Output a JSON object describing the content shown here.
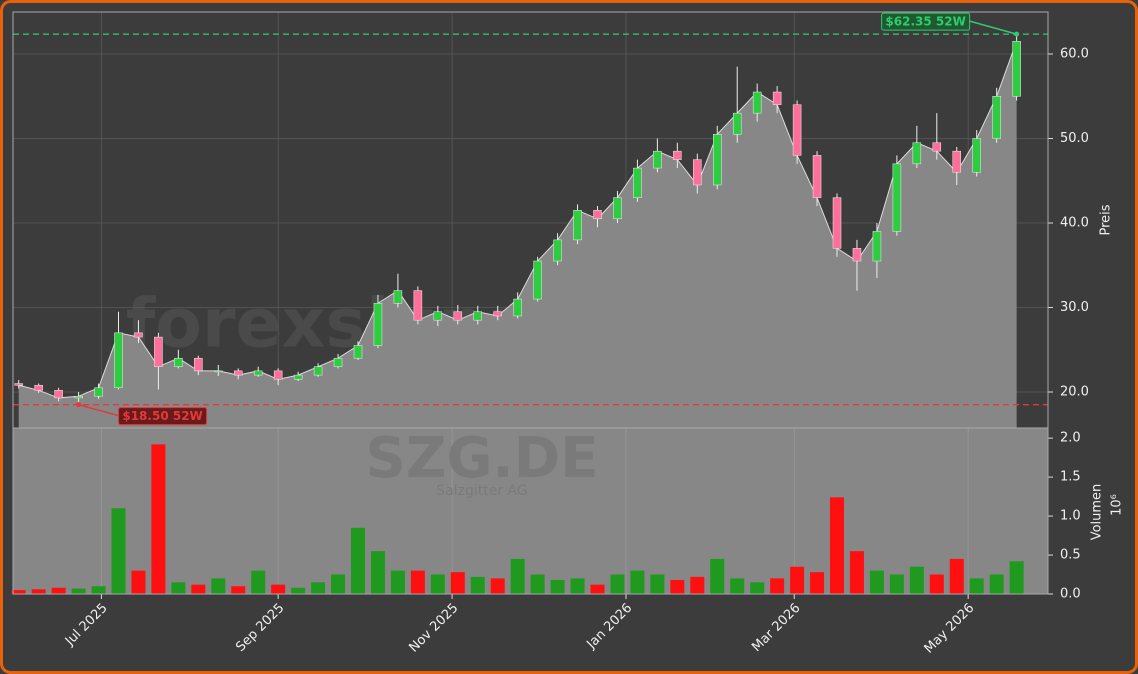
{
  "chart_data": {
    "type": "candlestick",
    "watermark": "forexsignale.trade",
    "ticker": "SZG.DE",
    "company": "Salzgitter AG",
    "y_label": "Preis",
    "up_color": "#2ecc40",
    "down_color": "#ff6f9c",
    "area_color": "#878787",
    "x": [
      "2025-06-02",
      "2025-06-09",
      "2025-06-16",
      "2025-06-23",
      "2025-06-30",
      "2025-07-07",
      "2025-07-14",
      "2025-07-21",
      "2025-07-28",
      "2025-08-04",
      "2025-08-11",
      "2025-08-18",
      "2025-08-25",
      "2025-09-01",
      "2025-09-08",
      "2025-09-15",
      "2025-09-22",
      "2025-09-29",
      "2025-10-06",
      "2025-10-13",
      "2025-10-20",
      "2025-10-27",
      "2025-11-03",
      "2025-11-10",
      "2025-11-17",
      "2025-11-24",
      "2025-12-01",
      "2025-12-08",
      "2025-12-15",
      "2025-12-22",
      "2025-12-29",
      "2026-01-05",
      "2026-01-12",
      "2026-01-19",
      "2026-01-26",
      "2026-02-02",
      "2026-02-09",
      "2026-02-16",
      "2026-02-23",
      "2026-03-02",
      "2026-03-09",
      "2026-03-16",
      "2026-03-23",
      "2026-03-30",
      "2026-04-06",
      "2026-04-13",
      "2026-04-20",
      "2026-04-27",
      "2026-05-04",
      "2026-05-11",
      "2026-05-18"
    ],
    "open": [
      21.0,
      20.8,
      20.2,
      19.3,
      19.5,
      20.5,
      27.0,
      26.5,
      23.0,
      24.0,
      22.5,
      22.5,
      22.0,
      22.5,
      21.5,
      22.0,
      23.0,
      24.0,
      25.5,
      30.5,
      32.0,
      28.5,
      29.5,
      28.5,
      29.5,
      29.0,
      31.0,
      35.5,
      38.0,
      41.5,
      40.5,
      43.0,
      46.5,
      48.5,
      47.5,
      44.5,
      50.5,
      53.0,
      55.5,
      54.0,
      48.0,
      43.0,
      37.0,
      35.5,
      39.0,
      47.0,
      49.5,
      48.5,
      46.0,
      50.0,
      55.0
    ],
    "high": [
      21.4,
      21.0,
      20.5,
      20.0,
      21.0,
      29.5,
      28.5,
      27.0,
      25.0,
      24.3,
      23.2,
      22.8,
      23.0,
      22.8,
      22.4,
      23.4,
      24.5,
      26.0,
      31.5,
      34.0,
      32.5,
      30.2,
      30.3,
      30.2,
      30.2,
      31.8,
      36.0,
      38.8,
      42.2,
      42.0,
      43.8,
      47.5,
      50.0,
      49.5,
      48.2,
      51.5,
      58.5,
      56.5,
      56.2,
      54.5,
      48.5,
      43.5,
      38.0,
      40.0,
      48.0,
      51.5,
      53.0,
      49.0,
      51.0,
      56.0,
      62.35
    ],
    "low": [
      20.4,
      19.9,
      18.9,
      18.5,
      19.2,
      20.3,
      25.8,
      20.3,
      22.8,
      22.0,
      21.9,
      21.5,
      21.8,
      20.8,
      21.3,
      21.8,
      22.8,
      23.8,
      25.2,
      30.0,
      28.0,
      27.8,
      28.0,
      28.0,
      28.5,
      28.7,
      30.7,
      35.0,
      37.5,
      39.5,
      40.0,
      42.5,
      46.0,
      46.5,
      43.5,
      44.0,
      49.5,
      52.0,
      53.0,
      47.0,
      42.0,
      36.0,
      32.0,
      33.5,
      38.5,
      46.5,
      47.5,
      44.5,
      45.5,
      49.5,
      54.5
    ],
    "close": [
      20.8,
      20.2,
      19.3,
      19.5,
      20.5,
      27.0,
      26.5,
      23.0,
      24.0,
      22.5,
      22.5,
      22.0,
      22.5,
      21.5,
      22.0,
      23.0,
      24.0,
      25.5,
      30.5,
      32.0,
      28.5,
      29.5,
      28.5,
      29.5,
      29.0,
      31.0,
      35.5,
      38.0,
      41.5,
      40.5,
      43.0,
      46.5,
      48.5,
      47.5,
      44.5,
      50.5,
      53.0,
      55.5,
      54.0,
      48.0,
      43.0,
      37.0,
      35.5,
      39.0,
      47.0,
      49.5,
      48.5,
      46.0,
      50.0,
      55.0,
      61.5
    ],
    "xlim": [
      "2025-05-31",
      "2026-05-29"
    ],
    "xticks": [
      {
        "value": "2025-07-01",
        "label": "Jul 2025"
      },
      {
        "value": "2025-09-01",
        "label": "Sep 2025"
      },
      {
        "value": "2025-11-01",
        "label": "Nov 2025"
      },
      {
        "value": "2026-01-01",
        "label": "Jan 2026"
      },
      {
        "value": "2026-03-01",
        "label": "Mar 2026"
      },
      {
        "value": "2026-05-01",
        "label": "May 2026"
      }
    ],
    "ylim": [
      15.74,
      64.97
    ],
    "yticks": [
      {
        "value": 20,
        "label": "20.0"
      },
      {
        "value": 30,
        "label": "30.0"
      },
      {
        "value": 40,
        "label": "40.0"
      },
      {
        "value": 50,
        "label": "50.0"
      },
      {
        "value": 60,
        "label": "60.0"
      }
    ],
    "grid": true,
    "annotations": [
      {
        "text": "$62.35 52W",
        "value": 62.35,
        "color": "#2ecc71"
      },
      {
        "text": "$18.50 52W",
        "value": 18.5,
        "color": "#e03a3a"
      }
    ],
    "volume": {
      "label": "Volumen",
      "unit": "10⁶",
      "up_color": "#1f9a1f",
      "down_color": "#ff1010",
      "values": [
        0.05,
        0.06,
        0.08,
        0.07,
        0.1,
        1.1,
        0.3,
        1.92,
        0.15,
        0.12,
        0.2,
        0.1,
        0.3,
        0.12,
        0.08,
        0.15,
        0.25,
        0.85,
        0.55,
        0.3,
        0.3,
        0.25,
        0.28,
        0.22,
        0.2,
        0.45,
        0.25,
        0.18,
        0.2,
        0.12,
        0.25,
        0.3,
        0.25,
        0.18,
        0.22,
        0.45,
        0.2,
        0.15,
        0.2,
        0.35,
        0.28,
        1.24,
        0.55,
        0.3,
        0.25,
        0.35,
        0.25,
        0.45,
        0.2,
        0.25,
        0.42
      ],
      "ylim": [
        0,
        2.13
      ],
      "yticks": [
        {
          "value": 0,
          "label": "0.0"
        },
        {
          "value": 0.5,
          "label": "0.5"
        },
        {
          "value": 1,
          "label": "1.0"
        },
        {
          "value": 1.5,
          "label": "1.5"
        },
        {
          "value": 2,
          "label": "2.0"
        }
      ]
    }
  }
}
